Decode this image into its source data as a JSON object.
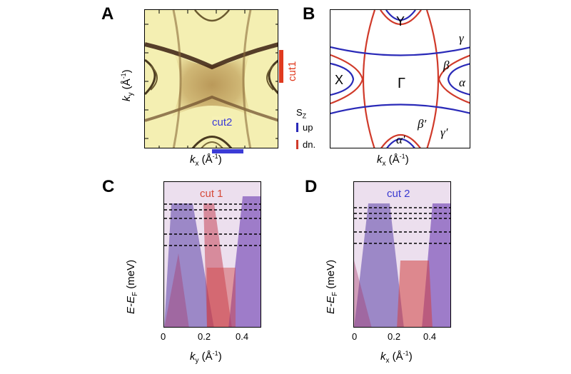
{
  "figure": {
    "panels": {
      "a": {
        "letter": "A",
        "xlabel_main": "k",
        "xlabel_sub": "x",
        "xlabel_unit": " (Å",
        "xlabel_exp": "-1",
        "xlabel_close": ")",
        "ylabel_main": "k",
        "ylabel_sub": "y",
        "ylabel_unit": " (Å",
        "ylabel_exp": "-1",
        "ylabel_close": ")",
        "cut1_label": "cut1",
        "cut2_label": "cut2",
        "cut1_color": "#e03a1e",
        "cut2_color": "#3b3bd6"
      },
      "b": {
        "letter": "B",
        "xlabel_main": "k",
        "xlabel_sub": "x",
        "xlabel_unit": " (Å",
        "xlabel_exp": "-1",
        "xlabel_close": ")",
        "point_Y": "Y",
        "point_X": "X",
        "point_Gamma": "Γ",
        "band_gamma": "γ",
        "band_beta": "β",
        "band_alpha": "α",
        "band_beta_prime": "β′",
        "band_gamma_prime": "γ′",
        "band_alpha_prime": "α′",
        "legend_title": "S",
        "legend_title_sub": "Z",
        "legend_up": "up",
        "legend_dn": "dn.",
        "up_color": "#2a2ab8",
        "dn_color": "#d03a2a"
      },
      "c": {
        "letter": "C",
        "title": "cut 1",
        "title_color": "#d64a3a",
        "ylabel": "E-E",
        "ylabel_sub": "F",
        "ylabel_unit": " (meV)",
        "xlabel_main": "k",
        "xlabel_sub": "y",
        "xlabel_unit": " (Å",
        "xlabel_exp": "-1",
        "xlabel_close": ")",
        "xticks": [
          "0",
          "0.2",
          "0.4"
        ]
      },
      "d": {
        "letter": "D",
        "title": "cut 2",
        "title_color": "#3a3ad0",
        "ylabel": "E-E",
        "ylabel_sub": "F",
        "ylabel_unit": " (meV)",
        "xlabel_main": "k",
        "xlabel_sub": "x",
        "xlabel_unit": " (Å",
        "xlabel_exp": "-1",
        "xlabel_close": ")",
        "xticks": [
          "0",
          "0.2",
          "0.4"
        ]
      }
    }
  }
}
